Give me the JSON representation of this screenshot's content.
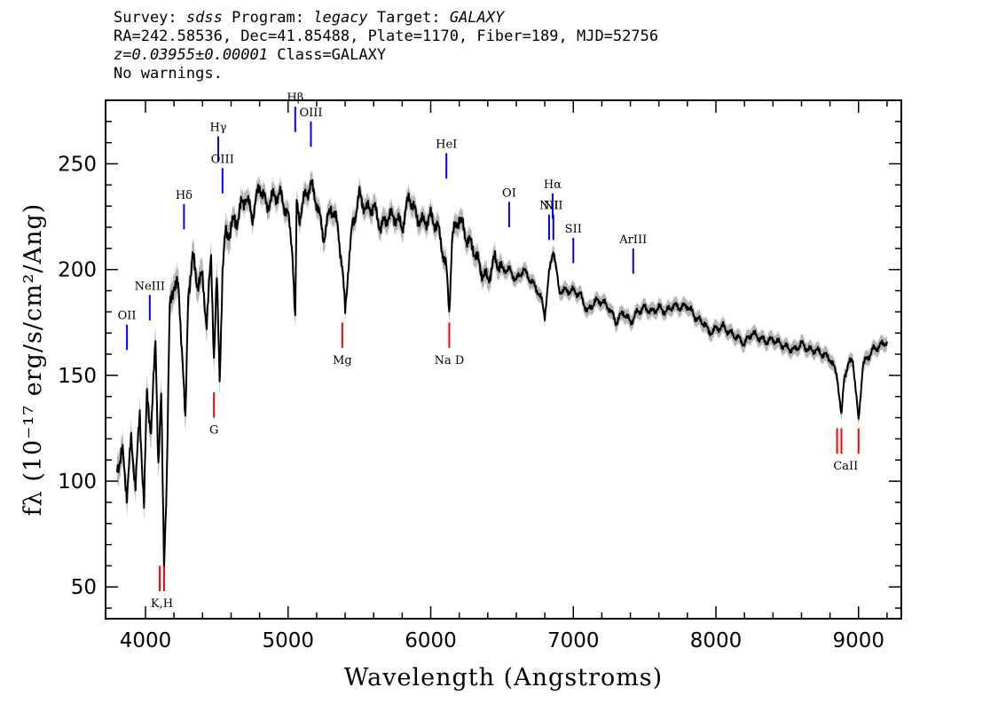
{
  "header": {
    "survey_label": "Survey:",
    "survey": "sdss",
    "program_label": "Program:",
    "program": "legacy",
    "target_label": "Target:",
    "target": "GALAXY",
    "line2": "RA=242.58536, Dec=41.85488, Plate=1170, Fiber=189, MJD=52756",
    "redshift": "z=0.03955±0.00001",
    "class": "Class=GALAXY",
    "warnings": "No warnings."
  },
  "chart_data": {
    "type": "line",
    "xlabel": "Wavelength (Angstroms)",
    "ylabel": "fλ (10⁻¹⁷ erg/s/cm²/Ang)",
    "xlim": [
      3720,
      9300
    ],
    "ylim": [
      35,
      280
    ],
    "x_ticks": [
      4000,
      5000,
      6000,
      7000,
      8000,
      9000
    ],
    "y_ticks": [
      50,
      100,
      150,
      200,
      250
    ],
    "grid": false,
    "colors": {
      "spectrum": "#000000",
      "error_band": "#b4b4b4",
      "emission": "#0000ff",
      "absorption": "#ff0000"
    },
    "series": [
      {
        "x": [
          3800,
          3840,
          3870,
          3900,
          3930,
          3960,
          3990,
          4010,
          4040,
          4070,
          4090,
          4110,
          4130,
          4150,
          4170,
          4200,
          4230,
          4260,
          4280,
          4300,
          4330,
          4360,
          4400,
          4430,
          4460,
          4480,
          4500,
          4520,
          4540,
          4560,
          4600,
          4650,
          4700,
          4750,
          4800,
          4850,
          4900,
          4950,
          5000,
          5030,
          5050,
          5060,
          5080,
          5120,
          5160,
          5200,
          5250,
          5300,
          5350,
          5380,
          5400,
          5420,
          5450,
          5500,
          5550,
          5600,
          5650,
          5700,
          5750,
          5800,
          5850,
          5900,
          5950,
          6000,
          6050,
          6080,
          6110,
          6130,
          6150,
          6200,
          6250,
          6300,
          6350,
          6400,
          6450,
          6500,
          6550,
          6600,
          6650,
          6700,
          6750,
          6780,
          6800,
          6830,
          6860,
          6900,
          6950,
          7000,
          7050,
          7100,
          7150,
          7200,
          7250,
          7300,
          7350,
          7400,
          7450,
          7500,
          7550,
          7600,
          7650,
          7700,
          7750,
          7800,
          7850,
          7900,
          7920,
          7950,
          8000,
          8050,
          8100,
          8150,
          8200,
          8250,
          8300,
          8350,
          8400,
          8450,
          8500,
          8550,
          8600,
          8650,
          8700,
          8750,
          8800,
          8850,
          8880,
          8900,
          8930,
          8960,
          9000,
          9030,
          9060,
          9100,
          9150,
          9200
        ],
        "y": [
          108,
          112,
          95,
          118,
          100,
          130,
          90,
          140,
          125,
          165,
          110,
          140,
          60,
          105,
          180,
          195,
          190,
          160,
          125,
          190,
          205,
          195,
          195,
          175,
          205,
          160,
          195,
          148,
          200,
          215,
          220,
          225,
          235,
          225,
          240,
          230,
          235,
          235,
          225,
          210,
          175,
          230,
          225,
          235,
          240,
          232,
          215,
          230,
          220,
          200,
          180,
          200,
          220,
          235,
          228,
          230,
          220,
          225,
          225,
          220,
          235,
          225,
          222,
          225,
          220,
          210,
          200,
          180,
          215,
          225,
          215,
          210,
          200,
          195,
          205,
          200,
          200,
          195,
          200,
          195,
          190,
          185,
          178,
          198,
          210,
          190,
          190,
          190,
          188,
          180,
          185,
          185,
          182,
          175,
          180,
          175,
          180,
          182,
          180,
          182,
          180,
          183,
          182,
          183,
          178,
          175,
          175,
          170,
          172,
          173,
          170,
          168,
          165,
          170,
          168,
          166,
          167,
          165,
          163,
          162,
          165,
          162,
          162,
          160,
          158,
          150,
          130,
          150,
          155,
          158,
          128,
          155,
          158,
          162,
          164,
          166
        ]
      }
    ],
    "emission_lines": [
      {
        "label": "OII",
        "x": 3870,
        "y": 162
      },
      {
        "label": "NeIII",
        "x": 4030,
        "y": 176
      },
      {
        "label": "Hδ",
        "x": 4270,
        "y": 219
      },
      {
        "label": "Hγ",
        "x": 4510,
        "y": 251
      },
      {
        "label": "OIII",
        "x": 4540,
        "y": 236
      },
      {
        "label": "Hβ",
        "x": 5050,
        "y": 265
      },
      {
        "label": "OIII",
        "x": 5160,
        "y": 258
      },
      {
        "label": "HeI",
        "x": 6110,
        "y": 243
      },
      {
        "label": "OI",
        "x": 6550,
        "y": 220
      },
      {
        "label": "NII",
        "x": 6830,
        "y": 214
      },
      {
        "label": "Hα",
        "x": 6855,
        "y": 224
      },
      {
        "label": "NII",
        "x": 6860,
        "y": 214
      },
      {
        "label": "SII",
        "x": 7000,
        "y": 203
      },
      {
        "label": "ArIII",
        "x": 7420,
        "y": 198
      }
    ],
    "absorption_lines": [
      {
        "label": "K,H",
        "x": [
          4100,
          4130
        ],
        "y": 48
      },
      {
        "label": "G",
        "x": [
          4480
        ],
        "y": 130
      },
      {
        "label": "Mg",
        "x": [
          5380
        ],
        "y": 163
      },
      {
        "label": "Na D",
        "x": [
          6130
        ],
        "y": 163
      },
      {
        "label": "CaII",
        "x": [
          8850,
          8880,
          9000
        ],
        "y": 113
      }
    ]
  }
}
